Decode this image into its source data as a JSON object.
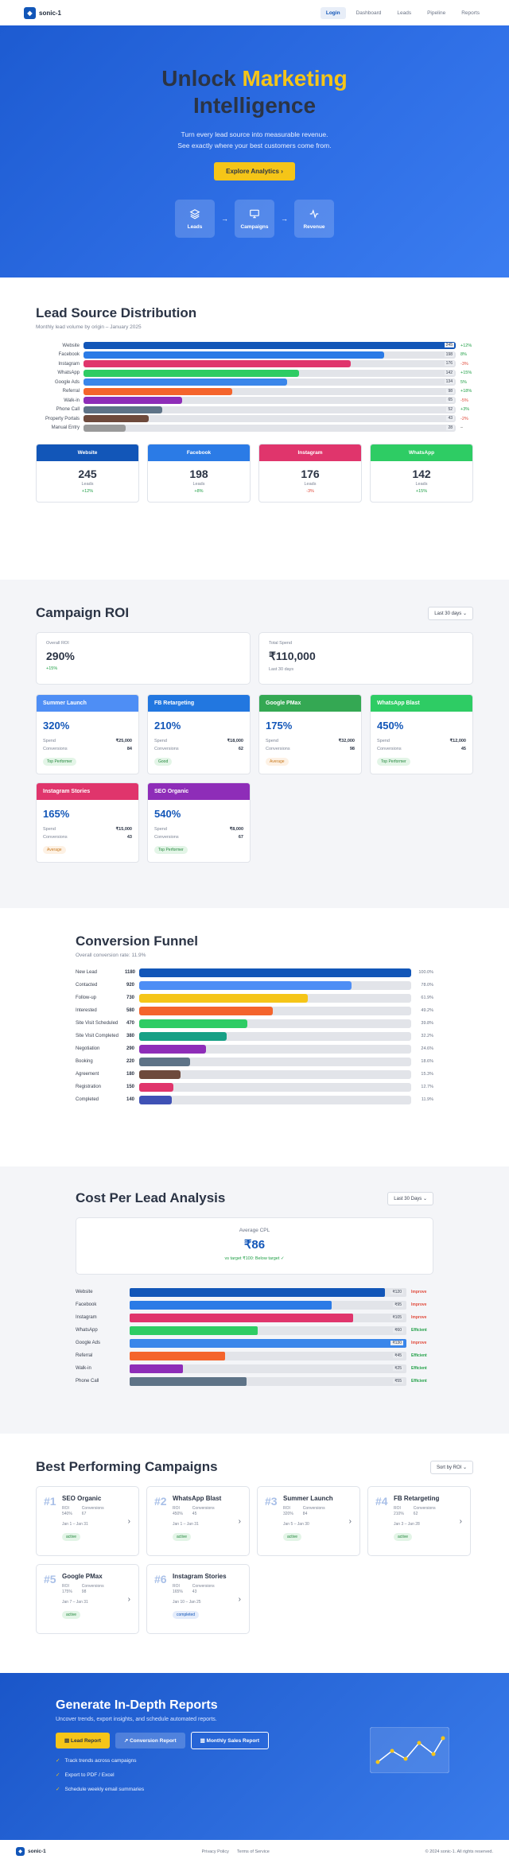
{
  "nav": {
    "brand": "sonic-1",
    "links": [
      "Login",
      "Dashboard",
      "Leads",
      "Pipeline",
      "Reports"
    ]
  },
  "hero": {
    "title_a": "Unlock",
    "title_b": "Marketing",
    "title_c": "Intelligence",
    "line1": "Turn every lead source into measurable revenue.",
    "line2": "See exactly where your best customers come from.",
    "cta": "Explore Analytics",
    "flow": [
      "Leads",
      "Campaigns",
      "Revenue"
    ]
  },
  "leads": {
    "title": "Lead Source Distribution",
    "subtitle": "Monthly lead volume by origin – January 2025",
    "rows": [
      {
        "label": "Website",
        "value": 245,
        "change": "+12%",
        "dir": "pos",
        "color": "#1256b8"
      },
      {
        "label": "Facebook",
        "value": 198,
        "change": "8%",
        "dir": "pos",
        "color": "#2b7be6"
      },
      {
        "label": "Instagram",
        "value": 176,
        "change": "-3%",
        "dir": "neg",
        "color": "#e0356c"
      },
      {
        "label": "WhatsApp",
        "value": 142,
        "change": "+15%",
        "dir": "pos",
        "color": "#2ecc64"
      },
      {
        "label": "Google Ads",
        "value": 134,
        "change": "5%",
        "dir": "pos",
        "color": "#3a86ea"
      },
      {
        "label": "Referral",
        "value": 98,
        "change": "+18%",
        "dir": "pos",
        "color": "#f4642c"
      },
      {
        "label": "Walk-in",
        "value": 65,
        "change": "-5%",
        "dir": "neg",
        "color": "#8e2db8"
      },
      {
        "label": "Phone Call",
        "value": 52,
        "change": "+3%",
        "dir": "pos",
        "color": "#5e7387"
      },
      {
        "label": "Property Portals",
        "value": 43,
        "change": "-2%",
        "dir": "neg",
        "color": "#6e4a3c"
      },
      {
        "label": "Manual Entry",
        "value": 28,
        "change": "–",
        "dir": "neu",
        "color": "#9a9a9a"
      }
    ],
    "max": 245,
    "cards": [
      {
        "name": "Website",
        "value": "245",
        "unit": "Leads",
        "change": "+12%",
        "dir": "pos",
        "color": "#1256b8"
      },
      {
        "name": "Facebook",
        "value": "198",
        "unit": "Leads",
        "change": "+8%",
        "dir": "pos",
        "color": "#2b7be6"
      },
      {
        "name": "Instagram",
        "value": "176",
        "unit": "Leads",
        "change": "-3%",
        "dir": "neg",
        "color": "#e0356c"
      },
      {
        "name": "WhatsApp",
        "value": "142",
        "unit": "Leads",
        "change": "+15%",
        "dir": "pos",
        "color": "#2ecc64"
      }
    ]
  },
  "roi": {
    "title": "Campaign ROI",
    "filter": "Last 30 days",
    "overall_label": "Overall ROI",
    "overall": "290%",
    "overall_change": "+15%",
    "spend_label": "Total Spend",
    "spend": "₹110,000",
    "spend_note": "Last 30 days",
    "cards": [
      {
        "name": "Summer Launch",
        "roi": "320%",
        "spend": "₹25,000",
        "conv": "84",
        "badge": "Top Performer",
        "bclass": "b-top",
        "color": "#4e8ef5"
      },
      {
        "name": "FB Retargeting",
        "roi": "210%",
        "spend": "₹18,000",
        "conv": "62",
        "badge": "Good",
        "bclass": "b-good",
        "color": "#2277e0"
      },
      {
        "name": "Google PMax",
        "roi": "175%",
        "spend": "₹32,000",
        "conv": "98",
        "badge": "Average",
        "bclass": "b-avg",
        "color": "#34a853"
      },
      {
        "name": "WhatsApp Blast",
        "roi": "450%",
        "spend": "₹12,000",
        "conv": "45",
        "badge": "Top Performer",
        "bclass": "b-top",
        "color": "#2ecc64"
      },
      {
        "name": "Instagram Stories",
        "roi": "165%",
        "spend": "₹15,000",
        "conv": "43",
        "badge": "Average",
        "bclass": "b-avg",
        "color": "#e0356c"
      },
      {
        "name": "SEO Organic",
        "roi": "540%",
        "spend": "₹8,000",
        "conv": "67",
        "badge": "Top Performer",
        "bclass": "b-top",
        "color": "#8e2db8"
      }
    ],
    "spend_word": "Spend",
    "conv_word": "Conversions"
  },
  "funnel": {
    "title": "Conversion Funnel",
    "subtitle": "Overall conversion rate: 11.9%",
    "rows": [
      {
        "label": "New Lead",
        "value": 1180,
        "pct": "100.0%",
        "color": "#1256b8"
      },
      {
        "label": "Contacted",
        "value": 920,
        "pct": "78.0%",
        "color": "#4e8ef5"
      },
      {
        "label": "Follow-up",
        "value": 730,
        "pct": "61.9%",
        "color": "#f5c518"
      },
      {
        "label": "Interested",
        "value": 580,
        "pct": "49.2%",
        "color": "#f4642c"
      },
      {
        "label": "Site Visit Scheduled",
        "value": 470,
        "pct": "39.8%",
        "color": "#2ecc64"
      },
      {
        "label": "Site Visit Completed",
        "value": 380,
        "pct": "32.2%",
        "color": "#17a085"
      },
      {
        "label": "Negotiation",
        "value": 290,
        "pct": "24.6%",
        "color": "#8e2db8"
      },
      {
        "label": "Booking",
        "value": 220,
        "pct": "18.6%",
        "color": "#5e7387"
      },
      {
        "label": "Agreement",
        "value": 180,
        "pct": "15.3%",
        "color": "#6e4a3c"
      },
      {
        "label": "Registration",
        "value": 150,
        "pct": "12.7%",
        "color": "#e0356c"
      },
      {
        "label": "Completed",
        "value": 140,
        "pct": "11.9%",
        "color": "#3f51b5"
      }
    ]
  },
  "cpl": {
    "title": "Cost Per Lead Analysis",
    "filter": "Last 30 Days",
    "avg_label": "Average CPL",
    "avg": "₹86",
    "note": "vs target ₹100: Below target ✓",
    "max": 130,
    "rows": [
      {
        "label": "Website",
        "value": 120,
        "text": "₹120",
        "status": "Improve",
        "s": "st-improve",
        "color": "#1256b8"
      },
      {
        "label": "Facebook",
        "value": 95,
        "text": "₹95",
        "status": "Improve",
        "s": "st-improve",
        "color": "#2b7be6"
      },
      {
        "label": "Instagram",
        "value": 105,
        "text": "₹105",
        "status": "Improve",
        "s": "st-improve",
        "color": "#e0356c"
      },
      {
        "label": "WhatsApp",
        "value": 60,
        "text": "₹60",
        "status": "Efficient",
        "s": "st-eff",
        "color": "#2ecc64"
      },
      {
        "label": "Google Ads",
        "value": 130,
        "text": "₹130",
        "status": "Improve",
        "s": "st-improve",
        "color": "#3a86ea"
      },
      {
        "label": "Referral",
        "value": 45,
        "text": "₹45",
        "status": "Efficient",
        "s": "st-eff",
        "color": "#f4642c"
      },
      {
        "label": "Walk-in",
        "value": 25,
        "text": "₹25",
        "status": "Efficient",
        "s": "st-eff",
        "color": "#8e2db8"
      },
      {
        "label": "Phone Call",
        "value": 55,
        "text": "₹55",
        "status": "Efficient",
        "s": "st-eff",
        "color": "#5e7387"
      }
    ]
  },
  "best": {
    "title": "Best Performing Campaigns",
    "filter": "Sort by ROI",
    "roi_word": "ROI",
    "conv_word": "Conversions",
    "cards": [
      {
        "num": "#1",
        "name": "SEO Organic",
        "roi": "540%",
        "conv": "67",
        "date": "Jan 1 – Jan 31",
        "status": "active"
      },
      {
        "num": "#2",
        "name": "WhatsApp Blast",
        "roi": "450%",
        "conv": "45",
        "date": "Jan 1 – Jan 31",
        "status": "active"
      },
      {
        "num": "#3",
        "name": "Summer Launch",
        "roi": "320%",
        "conv": "84",
        "date": "Jan 5 – Jan 30",
        "status": "active"
      },
      {
        "num": "#4",
        "name": "FB Retargeting",
        "roi": "210%",
        "conv": "62",
        "date": "Jan 3 – Jan 28",
        "status": "active"
      },
      {
        "num": "#5",
        "name": "Google PMax",
        "roi": "175%",
        "conv": "98",
        "date": "Jan 7 – Jan 31",
        "status": "active"
      },
      {
        "num": "#6",
        "name": "Instagram Stories",
        "roi": "165%",
        "conv": "43",
        "date": "Jan 10 – Jan 25",
        "status": "completed"
      }
    ]
  },
  "report": {
    "title": "Generate In-Depth Reports",
    "subtitle": "Uncover trends, export insights, and schedule automated reports.",
    "btn1": "Lead Report",
    "btn2": "Conversion Report",
    "btn3": "Monthly Sales Report",
    "checks": [
      "Track trends across campaigns",
      "Export to PDF / Excel",
      "Schedule weekly email summaries"
    ]
  },
  "footer": {
    "brand": "sonic-1",
    "links": [
      "Privacy Policy",
      "Terms of Service"
    ],
    "copy": "© 2024 sonic-1. All rights reserved."
  }
}
